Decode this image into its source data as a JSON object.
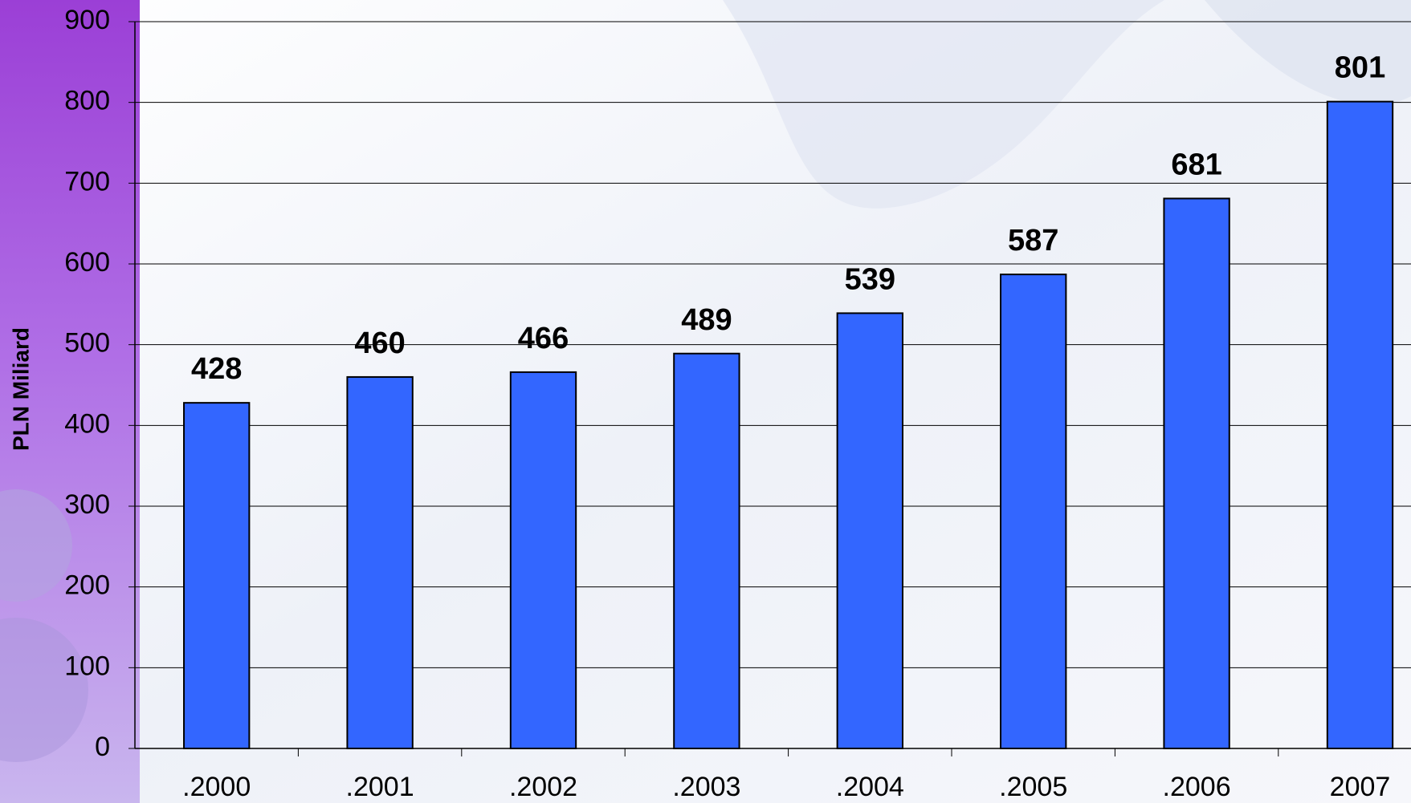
{
  "chart_data": {
    "type": "bar",
    "y_axis_label": "PLN Miliard",
    "categories": [
      ".2000",
      ".2001",
      ".2002",
      ".2003",
      ".2004",
      ".2005",
      ".2006",
      "2007"
    ],
    "values": [
      428,
      460,
      466,
      489,
      539,
      587,
      681,
      801
    ],
    "color": "#3366ff",
    "ylim": [
      0,
      900
    ],
    "yticks": [
      0,
      100,
      200,
      300,
      400,
      500,
      600,
      700,
      800,
      900
    ],
    "grid": true
  }
}
